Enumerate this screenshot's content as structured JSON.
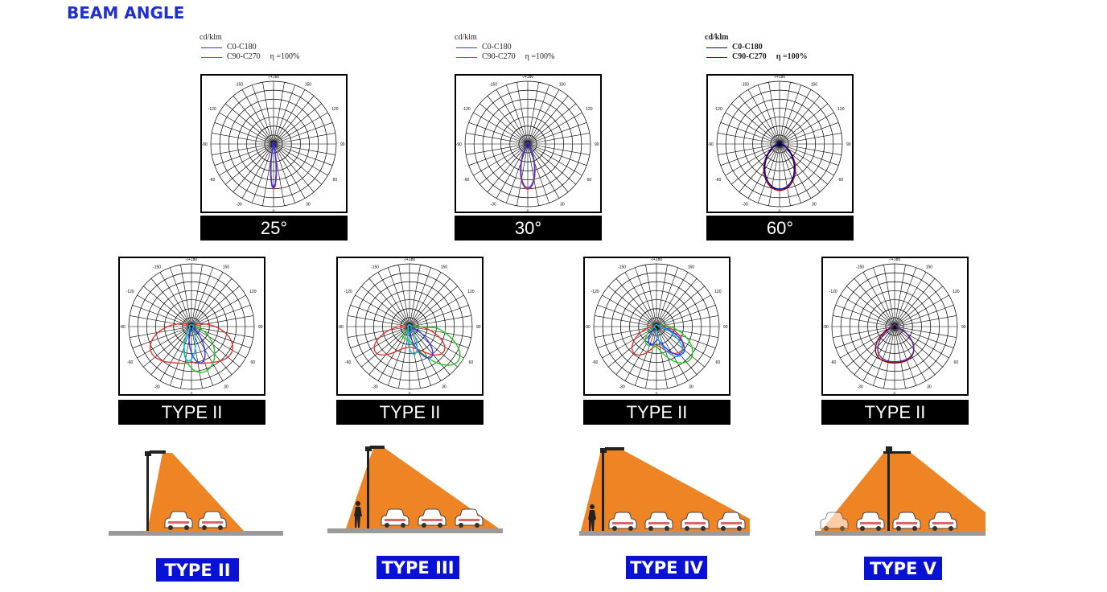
{
  "header": {
    "title": "BEAM ANGLE"
  },
  "legend": {
    "unit": "cd/klm",
    "series": [
      {
        "name": "C0-C180",
        "color": "#3333ff"
      },
      {
        "name": "C90-C270",
        "color": "#e8322a"
      }
    ],
    "efficiency": "η =100%",
    "series_dark": [
      {
        "name": "C0-C180",
        "color": "#0000aa"
      },
      {
        "name": "C90-C270",
        "color": "#990000"
      }
    ]
  },
  "angle_labels": {
    "top": "-/+180",
    "ul": "-150",
    "ur": "150",
    "ul2": "-120",
    "ur2": "120",
    "left": "-90",
    "right": "90",
    "ll2": "-60",
    "lr2": "60",
    "ll": "-30",
    "lr": "30",
    "bottom": "0"
  },
  "beam_charts": [
    {
      "caption": "25°"
    },
    {
      "caption": "30°"
    },
    {
      "caption": "60°"
    }
  ],
  "type_charts": [
    {
      "caption": "TYPE II"
    },
    {
      "caption": "TYPE II"
    },
    {
      "caption": "TYPE II"
    },
    {
      "caption": "TYPE II"
    }
  ],
  "scenes": [
    {
      "label": "TYPE II",
      "cars": 2,
      "pedestrian": false
    },
    {
      "label": "TYPE III",
      "cars": 3,
      "pedestrian": true
    },
    {
      "label": "TYPE IV",
      "cars": 4,
      "pedestrian": true
    },
    {
      "label": "TYPE V",
      "cars": 4,
      "pedestrian": false
    }
  ],
  "colors": {
    "title": "#1f2fd0",
    "light_cone": "#ef8424",
    "road": "#9a9a9a",
    "badge": "#0a11d6",
    "green_curve": "#1ec81e",
    "cyan_curve": "#10b8e0"
  }
}
